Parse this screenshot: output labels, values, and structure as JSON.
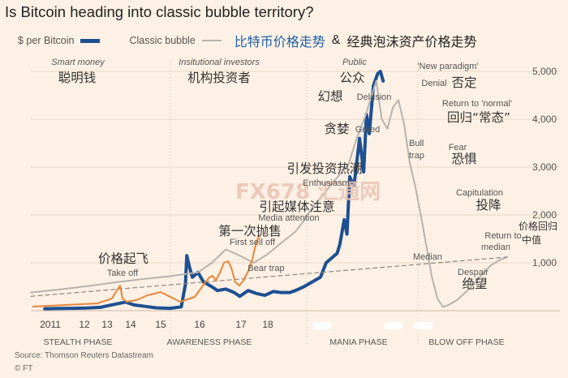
{
  "title": "Is Bitcoin heading into classic bubble territory?",
  "legend": {
    "btc_label": "$ per Bitcoin",
    "classic_label": "Classic bubble",
    "cn_title_1": "比特币价格走势",
    "amp": "&",
    "cn_title_2": "经典泡沫资产价格走势",
    "btc_color": "#1d4f91",
    "classic_color": "#b8b3ad",
    "overlay_color": "#e8863a"
  },
  "source": "Source: Thomson Reuters Datastream",
  "copyright": "© FT",
  "watermark": "FX678 汇通网",
  "chart_data": {
    "type": "line",
    "y_axis_ticks": [
      "1,000",
      "2,000",
      "3,000",
      "4,000",
      "5,000"
    ],
    "y_axis_tick_values": [
      1000,
      2000,
      3000,
      4000,
      5000
    ],
    "ylim": [
      0,
      5200
    ],
    "x_ticks": [
      "2011",
      "12",
      "13",
      "14",
      "15",
      "16",
      "17",
      "18"
    ],
    "phases": [
      "STEALTH PHASE",
      "AWARENESS PHASE",
      "MANIA PHASE",
      "BLOW OFF PHASE"
    ],
    "series": [
      {
        "name": "$ per Bitcoin",
        "x": [
          2011.0,
          2011.5,
          2012.0,
          2012.5,
          2013.0,
          2013.4,
          2013.9,
          2014.2,
          2014.6,
          2015.0,
          2015.5,
          2015.9,
          2016.05,
          2016.1,
          2016.2,
          2016.3,
          2016.5,
          2016.7,
          2017.0,
          2017.2,
          2017.5,
          2017.8,
          2018.0,
          2018.3,
          2018.6,
          2018.9,
          2019.2,
          2019.5,
          2019.8,
          2020.0,
          2020.3,
          2020.6,
          2020.9,
          2021.1,
          2021.3,
          2021.5,
          2021.6,
          2021.75,
          2021.85,
          2021.95,
          2022.1,
          2022.3,
          2022.45,
          2022.55,
          2022.65,
          2022.8,
          2022.95,
          2023.05,
          2023.15
        ],
        "values": [
          40,
          45,
          50,
          55,
          70,
          120,
          180,
          120,
          90,
          60,
          50,
          80,
          550,
          1150,
          900,
          700,
          800,
          600,
          500,
          420,
          450,
          380,
          300,
          420,
          360,
          320,
          400,
          380,
          380,
          420,
          500,
          600,
          700,
          1000,
          1100,
          1200,
          1400,
          1900,
          1600,
          2800,
          2600,
          3600,
          2900,
          4100,
          3700,
          4700,
          4950,
          5000,
          4800
        ]
      },
      {
        "name": "Classic bubble",
        "x": [
          2010.5,
          2011.5,
          2012.5,
          2013.5,
          2014.5,
          2015.5,
          2016.5,
          2017.0,
          2017.5,
          2018.0,
          2018.5,
          2019.0,
          2019.5,
          2020.0,
          2020.3,
          2020.6,
          2021.0,
          2021.3,
          2021.6,
          2021.9,
          2022.2,
          2022.5,
          2022.9,
          2023.1,
          2023.3,
          2023.5,
          2023.7,
          2023.9,
          2024.1,
          2024.3,
          2024.5,
          2024.7,
          2024.9,
          2025.1,
          2025.3,
          2025.5,
          2025.8,
          2026.1,
          2026.4,
          2026.7,
          2027.0,
          2027.3,
          2027.6
        ],
        "values": [
          380,
          440,
          510,
          590,
          660,
          720,
          800,
          1000,
          1280,
          1150,
          1000,
          1180,
          1420,
          1650,
          1880,
          2150,
          2420,
          2650,
          2850,
          3050,
          3600,
          4050,
          4800,
          4000,
          3800,
          4250,
          4400,
          3900,
          3100,
          2600,
          2000,
          1350,
          700,
          250,
          80,
          120,
          220,
          380,
          550,
          760,
          940,
          1050,
          1120
        ]
      },
      {
        "name": "Median",
        "x": [
          2010.5,
          2027.6
        ],
        "values": [
          300,
          1120
        ]
      }
    ],
    "annotations": [
      {
        "en": "Smart money",
        "cn": "聪明钱"
      },
      {
        "en": "Insitutional investors",
        "cn": "机构投资者"
      },
      {
        "en": "Public",
        "cn": "公众"
      },
      {
        "en": "Take off",
        "cn": "价格起飞"
      },
      {
        "en": "First sell off",
        "cn": "第一次抛售"
      },
      {
        "en": "Bear trap",
        "cn": ""
      },
      {
        "en": "Media attention",
        "cn": "引起媒体注意"
      },
      {
        "en": "Enthusiasm",
        "cn": "引发投资热潮"
      },
      {
        "en": "Greed",
        "cn": "贪婪"
      },
      {
        "en": "Delusion",
        "cn": "幻想"
      },
      {
        "en": "'New paradigm'",
        "cn": ""
      },
      {
        "en": "Denial",
        "cn": "否定"
      },
      {
        "en": "Return to 'normal'",
        "cn": "回归“常态”"
      },
      {
        "en": "Bull trap",
        "cn": ""
      },
      {
        "en": "Fear",
        "cn": "恐惧"
      },
      {
        "en": "Capitulation",
        "cn": "投降"
      },
      {
        "en": "Despair",
        "cn": "绝望"
      },
      {
        "en": "Return to median",
        "cn": "价格回归中值"
      },
      {
        "en": "Median",
        "cn": ""
      }
    ]
  }
}
